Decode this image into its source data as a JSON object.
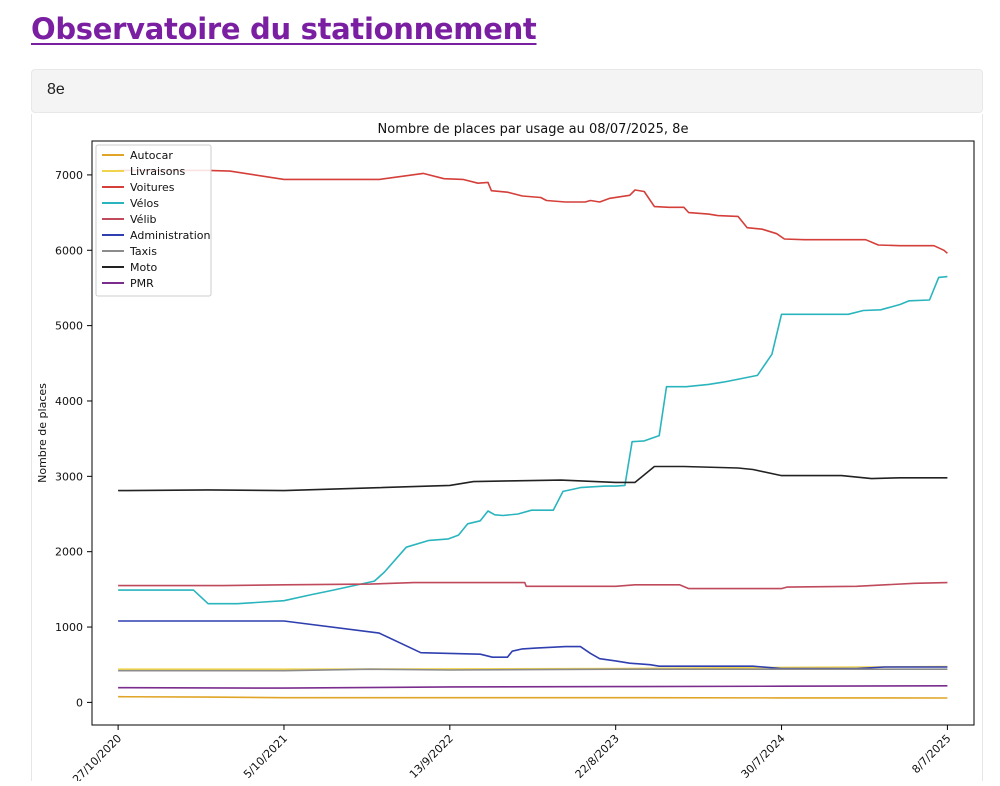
{
  "page": {
    "title": "Observatoire du stationnement"
  },
  "selector": {
    "value": "8e"
  },
  "chart_data": {
    "type": "line",
    "title": "Nombre de places par usage au 08/07/2025, 8e",
    "xlabel": "",
    "ylabel": "Nombre de places",
    "ylim": [
      -300,
      7450
    ],
    "yticks": [
      0,
      1000,
      2000,
      3000,
      4000,
      5000,
      6000,
      7000
    ],
    "xlim": [
      "2020-09-03",
      "2025-09-01"
    ],
    "xticks": [
      "2020-10-27",
      "2021-10-05",
      "2022-09-13",
      "2023-08-22",
      "2024-07-30",
      "2025-07-08"
    ],
    "xtick_labels": [
      "27/10/2020",
      "5/10/2021",
      "13/9/2022",
      "22/8/2023",
      "30/7/2024",
      "8/7/2025"
    ],
    "grid": false,
    "legend_position": "top-left",
    "series": [
      {
        "name": "Autocar",
        "color": "#e0a526",
        "points": [
          [
            "2020-10-27",
            75
          ],
          [
            "2021-05-01",
            70
          ],
          [
            "2021-10-05",
            62
          ],
          [
            "2022-09-13",
            62
          ],
          [
            "2023-08-22",
            62
          ],
          [
            "2024-07-30",
            60
          ],
          [
            "2025-07-08",
            58
          ]
        ]
      },
      {
        "name": "Livraisons",
        "color": "#f0d44c",
        "points": [
          [
            "2020-10-27",
            440
          ],
          [
            "2021-10-05",
            440
          ],
          [
            "2022-09-13",
            445
          ],
          [
            "2023-08-22",
            450
          ],
          [
            "2024-07-30",
            465
          ],
          [
            "2025-07-08",
            475
          ]
        ]
      },
      {
        "name": "Voitures",
        "color": "#d43f3a",
        "points": [
          [
            "2020-10-27",
            7060
          ],
          [
            "2021-05-01",
            7060
          ],
          [
            "2021-06-15",
            7050
          ],
          [
            "2021-10-05",
            6940
          ],
          [
            "2022-01-15",
            6940
          ],
          [
            "2022-04-20",
            6940
          ],
          [
            "2022-07-20",
            7020
          ],
          [
            "2022-09-01",
            6950
          ],
          [
            "2022-10-10",
            6940
          ],
          [
            "2022-11-10",
            6890
          ],
          [
            "2022-12-01",
            6900
          ],
          [
            "2022-12-08",
            6790
          ],
          [
            "2023-01-10",
            6770
          ],
          [
            "2023-02-10",
            6720
          ],
          [
            "2023-03-20",
            6700
          ],
          [
            "2023-04-01",
            6660
          ],
          [
            "2023-05-10",
            6640
          ],
          [
            "2023-06-20",
            6640
          ],
          [
            "2023-07-01",
            6660
          ],
          [
            "2023-07-20",
            6640
          ],
          [
            "2023-08-10",
            6690
          ],
          [
            "2023-09-20",
            6730
          ],
          [
            "2023-10-01",
            6800
          ],
          [
            "2023-10-20",
            6780
          ],
          [
            "2023-11-10",
            6580
          ],
          [
            "2023-12-10",
            6570
          ],
          [
            "2024-01-10",
            6570
          ],
          [
            "2024-01-20",
            6500
          ],
          [
            "2024-03-01",
            6480
          ],
          [
            "2024-03-20",
            6460
          ],
          [
            "2024-05-01",
            6450
          ],
          [
            "2024-05-20",
            6300
          ],
          [
            "2024-06-20",
            6280
          ],
          [
            "2024-07-20",
            6220
          ],
          [
            "2024-08-05",
            6150
          ],
          [
            "2024-09-15",
            6140
          ],
          [
            "2024-12-01",
            6140
          ],
          [
            "2025-01-20",
            6140
          ],
          [
            "2025-02-15",
            6070
          ],
          [
            "2025-04-01",
            6060
          ],
          [
            "2025-06-10",
            6060
          ],
          [
            "2025-07-01",
            6000
          ],
          [
            "2025-07-08",
            5960
          ]
        ]
      },
      {
        "name": "Vélos",
        "color": "#2ab5be",
        "points": [
          [
            "2020-10-27",
            1490
          ],
          [
            "2021-04-01",
            1490
          ],
          [
            "2021-05-01",
            1310
          ],
          [
            "2021-07-01",
            1310
          ],
          [
            "2021-10-05",
            1350
          ],
          [
            "2021-12-01",
            1430
          ],
          [
            "2022-01-15",
            1490
          ],
          [
            "2022-04-10",
            1610
          ],
          [
            "2022-05-01",
            1730
          ],
          [
            "2022-06-15",
            2060
          ],
          [
            "2022-08-01",
            2150
          ],
          [
            "2022-09-10",
            2170
          ],
          [
            "2022-10-01",
            2220
          ],
          [
            "2022-10-20",
            2370
          ],
          [
            "2022-11-15",
            2410
          ],
          [
            "2022-12-01",
            2540
          ],
          [
            "2022-12-15",
            2490
          ],
          [
            "2023-01-01",
            2480
          ],
          [
            "2023-02-01",
            2500
          ],
          [
            "2023-03-01",
            2550
          ],
          [
            "2023-04-15",
            2550
          ],
          [
            "2023-05-05",
            2800
          ],
          [
            "2023-05-20",
            2820
          ],
          [
            "2023-06-10",
            2850
          ],
          [
            "2023-07-01",
            2860
          ],
          [
            "2023-08-01",
            2870
          ],
          [
            "2023-08-22",
            2870
          ],
          [
            "2023-09-10",
            2880
          ],
          [
            "2023-09-25",
            3460
          ],
          [
            "2023-10-20",
            3470
          ],
          [
            "2023-11-20",
            3540
          ],
          [
            "2023-12-05",
            4190
          ],
          [
            "2024-01-15",
            4190
          ],
          [
            "2024-03-01",
            4220
          ],
          [
            "2024-04-01",
            4250
          ],
          [
            "2024-05-10",
            4300
          ],
          [
            "2024-06-10",
            4340
          ],
          [
            "2024-07-10",
            4620
          ],
          [
            "2024-07-30",
            5150
          ],
          [
            "2024-12-15",
            5150
          ],
          [
            "2025-01-15",
            5200
          ],
          [
            "2025-02-20",
            5210
          ],
          [
            "2025-04-01",
            5280
          ],
          [
            "2025-04-20",
            5330
          ],
          [
            "2025-06-01",
            5340
          ],
          [
            "2025-06-20",
            5640
          ],
          [
            "2025-07-08",
            5650
          ]
        ]
      },
      {
        "name": "Vélib",
        "color": "#bf4a5c",
        "points": [
          [
            "2020-10-27",
            1550
          ],
          [
            "2021-06-01",
            1550
          ],
          [
            "2021-10-05",
            1560
          ],
          [
            "2022-04-01",
            1570
          ],
          [
            "2022-07-01",
            1590
          ],
          [
            "2022-09-13",
            1590
          ],
          [
            "2023-02-15",
            1590
          ],
          [
            "2023-02-18",
            1540
          ],
          [
            "2023-08-22",
            1540
          ],
          [
            "2023-10-01",
            1560
          ],
          [
            "2024-01-01",
            1560
          ],
          [
            "2024-01-20",
            1510
          ],
          [
            "2024-07-30",
            1510
          ],
          [
            "2024-08-10",
            1530
          ],
          [
            "2025-01-01",
            1540
          ],
          [
            "2025-05-01",
            1580
          ],
          [
            "2025-07-08",
            1590
          ]
        ]
      },
      {
        "name": "Administration",
        "color": "#2f3fb0",
        "points": [
          [
            "2020-10-27",
            1080
          ],
          [
            "2021-10-05",
            1080
          ],
          [
            "2022-04-20",
            920
          ],
          [
            "2022-07-15",
            660
          ],
          [
            "2022-09-13",
            650
          ],
          [
            "2022-11-15",
            640
          ],
          [
            "2022-12-10",
            600
          ],
          [
            "2023-01-10",
            600
          ],
          [
            "2023-01-20",
            680
          ],
          [
            "2023-02-10",
            710
          ],
          [
            "2023-03-10",
            720
          ],
          [
            "2023-04-05",
            730
          ],
          [
            "2023-05-10",
            740
          ],
          [
            "2023-06-10",
            740
          ],
          [
            "2023-07-01",
            650
          ],
          [
            "2023-07-20",
            580
          ],
          [
            "2023-08-22",
            550
          ],
          [
            "2023-09-20",
            520
          ],
          [
            "2023-11-01",
            500
          ],
          [
            "2023-11-20",
            480
          ],
          [
            "2024-06-01",
            480
          ],
          [
            "2024-07-30",
            450
          ],
          [
            "2025-01-01",
            450
          ],
          [
            "2025-03-01",
            470
          ],
          [
            "2025-07-08",
            470
          ]
        ]
      },
      {
        "name": "Taxis",
        "color": "#8c8c8c",
        "points": [
          [
            "2020-10-27",
            420
          ],
          [
            "2021-10-05",
            420
          ],
          [
            "2022-04-01",
            440
          ],
          [
            "2022-09-13",
            430
          ],
          [
            "2023-08-22",
            440
          ],
          [
            "2024-07-30",
            440
          ],
          [
            "2025-07-08",
            440
          ]
        ]
      },
      {
        "name": "Moto",
        "color": "#222222",
        "points": [
          [
            "2020-10-27",
            2810
          ],
          [
            "2021-05-01",
            2820
          ],
          [
            "2021-10-05",
            2810
          ],
          [
            "2022-09-13",
            2880
          ],
          [
            "2022-11-01",
            2930
          ],
          [
            "2023-01-10",
            2940
          ],
          [
            "2023-05-01",
            2950
          ],
          [
            "2023-08-22",
            2920
          ],
          [
            "2023-10-01",
            2920
          ],
          [
            "2023-11-10",
            3130
          ],
          [
            "2024-01-10",
            3130
          ],
          [
            "2024-05-01",
            3110
          ],
          [
            "2024-06-01",
            3090
          ],
          [
            "2024-07-30",
            3010
          ],
          [
            "2024-12-01",
            3010
          ],
          [
            "2025-02-01",
            2970
          ],
          [
            "2025-04-01",
            2980
          ],
          [
            "2025-07-08",
            2980
          ]
        ]
      },
      {
        "name": "PMR",
        "color": "#7b2d8e",
        "points": [
          [
            "2020-10-27",
            195
          ],
          [
            "2021-10-05",
            190
          ],
          [
            "2022-06-01",
            200
          ],
          [
            "2022-09-13",
            205
          ],
          [
            "2023-08-22",
            210
          ],
          [
            "2024-07-30",
            215
          ],
          [
            "2025-07-08",
            220
          ]
        ]
      }
    ]
  }
}
